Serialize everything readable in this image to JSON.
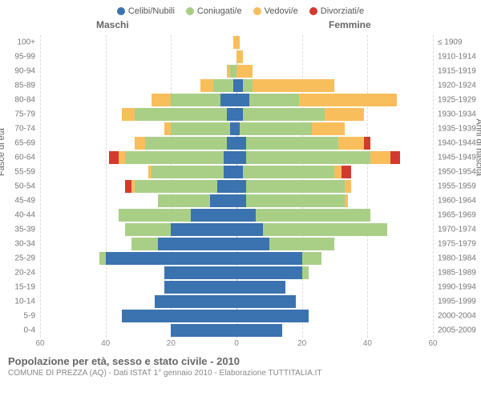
{
  "legend": [
    {
      "label": "Celibi/Nubili",
      "color": "#3b73b0"
    },
    {
      "label": "Coniugati/e",
      "color": "#a9cf87"
    },
    {
      "label": "Vedovi/e",
      "color": "#f9be5c"
    },
    {
      "label": "Divorziati/e",
      "color": "#d33a2f"
    }
  ],
  "headers": {
    "male": "Maschi",
    "female": "Femmine"
  },
  "axis_titles": {
    "left": "Fasce di età",
    "right": "Anni di nascita"
  },
  "xmax": 60,
  "xticks": [
    60,
    40,
    20,
    0,
    20,
    40,
    60
  ],
  "colors": {
    "celibi": "#3b73b0",
    "coniugati": "#a9cf87",
    "vedovi": "#f9be5c",
    "divorziati": "#d33a2f",
    "grid": "#dddddd",
    "center": "#bbbbbb",
    "bg": "#ffffff"
  },
  "rows": [
    {
      "age": "100+",
      "birth": "≤ 1909",
      "m": {
        "c": 0,
        "co": 0,
        "v": 1,
        "d": 0
      },
      "f": {
        "c": 0,
        "co": 0,
        "v": 1,
        "d": 0
      }
    },
    {
      "age": "95-99",
      "birth": "1910-1914",
      "m": {
        "c": 0,
        "co": 0,
        "v": 0,
        "d": 0
      },
      "f": {
        "c": 0,
        "co": 0,
        "v": 2,
        "d": 0
      }
    },
    {
      "age": "90-94",
      "birth": "1915-1919",
      "m": {
        "c": 0,
        "co": 2,
        "v": 1,
        "d": 0
      },
      "f": {
        "c": 0,
        "co": 0,
        "v": 5,
        "d": 0
      }
    },
    {
      "age": "85-89",
      "birth": "1920-1924",
      "m": {
        "c": 1,
        "co": 6,
        "v": 4,
        "d": 0
      },
      "f": {
        "c": 2,
        "co": 3,
        "v": 25,
        "d": 0
      }
    },
    {
      "age": "80-84",
      "birth": "1925-1929",
      "m": {
        "c": 5,
        "co": 15,
        "v": 6,
        "d": 0
      },
      "f": {
        "c": 4,
        "co": 15,
        "v": 30,
        "d": 0
      }
    },
    {
      "age": "75-79",
      "birth": "1930-1934",
      "m": {
        "c": 3,
        "co": 28,
        "v": 4,
        "d": 0
      },
      "f": {
        "c": 2,
        "co": 25,
        "v": 12,
        "d": 0
      }
    },
    {
      "age": "70-74",
      "birth": "1935-1939",
      "m": {
        "c": 2,
        "co": 18,
        "v": 2,
        "d": 0
      },
      "f": {
        "c": 1,
        "co": 22,
        "v": 10,
        "d": 0
      }
    },
    {
      "age": "65-69",
      "birth": "1940-1944",
      "m": {
        "c": 3,
        "co": 25,
        "v": 3,
        "d": 0
      },
      "f": {
        "c": 3,
        "co": 28,
        "v": 8,
        "d": 2
      }
    },
    {
      "age": "60-64",
      "birth": "1945-1949",
      "m": {
        "c": 4,
        "co": 30,
        "v": 2,
        "d": 3
      },
      "f": {
        "c": 3,
        "co": 38,
        "v": 6,
        "d": 3
      }
    },
    {
      "age": "55-59",
      "birth": "1950-1954",
      "m": {
        "c": 4,
        "co": 22,
        "v": 1,
        "d": 0
      },
      "f": {
        "c": 2,
        "co": 28,
        "v": 2,
        "d": 3
      }
    },
    {
      "age": "50-54",
      "birth": "1955-1959",
      "m": {
        "c": 6,
        "co": 25,
        "v": 1,
        "d": 2
      },
      "f": {
        "c": 3,
        "co": 30,
        "v": 2,
        "d": 0
      }
    },
    {
      "age": "45-49",
      "birth": "1960-1964",
      "m": {
        "c": 8,
        "co": 16,
        "v": 0,
        "d": 0
      },
      "f": {
        "c": 3,
        "co": 30,
        "v": 1,
        "d": 0
      }
    },
    {
      "age": "40-44",
      "birth": "1965-1969",
      "m": {
        "c": 14,
        "co": 22,
        "v": 0,
        "d": 0
      },
      "f": {
        "c": 6,
        "co": 35,
        "v": 0,
        "d": 0
      }
    },
    {
      "age": "35-39",
      "birth": "1970-1974",
      "m": {
        "c": 20,
        "co": 14,
        "v": 0,
        "d": 0
      },
      "f": {
        "c": 8,
        "co": 38,
        "v": 0,
        "d": 0
      }
    },
    {
      "age": "30-34",
      "birth": "1975-1979",
      "m": {
        "c": 24,
        "co": 8,
        "v": 0,
        "d": 0
      },
      "f": {
        "c": 10,
        "co": 20,
        "v": 0,
        "d": 0
      }
    },
    {
      "age": "25-29",
      "birth": "1980-1984",
      "m": {
        "c": 40,
        "co": 2,
        "v": 0,
        "d": 0
      },
      "f": {
        "c": 20,
        "co": 6,
        "v": 0,
        "d": 0
      }
    },
    {
      "age": "20-24",
      "birth": "1985-1989",
      "m": {
        "c": 22,
        "co": 0,
        "v": 0,
        "d": 0
      },
      "f": {
        "c": 20,
        "co": 2,
        "v": 0,
        "d": 0
      }
    },
    {
      "age": "15-19",
      "birth": "1990-1994",
      "m": {
        "c": 22,
        "co": 0,
        "v": 0,
        "d": 0
      },
      "f": {
        "c": 15,
        "co": 0,
        "v": 0,
        "d": 0
      }
    },
    {
      "age": "10-14",
      "birth": "1995-1999",
      "m": {
        "c": 25,
        "co": 0,
        "v": 0,
        "d": 0
      },
      "f": {
        "c": 18,
        "co": 0,
        "v": 0,
        "d": 0
      }
    },
    {
      "age": "5-9",
      "birth": "2000-2004",
      "m": {
        "c": 35,
        "co": 0,
        "v": 0,
        "d": 0
      },
      "f": {
        "c": 22,
        "co": 0,
        "v": 0,
        "d": 0
      }
    },
    {
      "age": "0-4",
      "birth": "2005-2009",
      "m": {
        "c": 20,
        "co": 0,
        "v": 0,
        "d": 0
      },
      "f": {
        "c": 14,
        "co": 0,
        "v": 0,
        "d": 0
      }
    }
  ],
  "footer": {
    "title": "Popolazione per età, sesso e stato civile - 2010",
    "subtitle": "COMUNE DI PREZZA (AQ) - Dati ISTAT 1° gennaio 2010 - Elaborazione TUTTITALIA.IT"
  }
}
